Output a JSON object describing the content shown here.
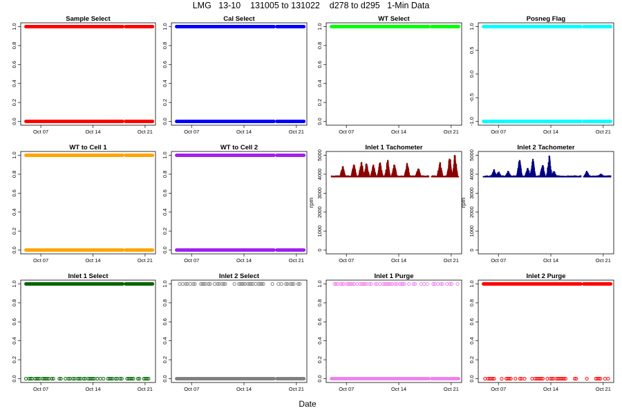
{
  "figure": {
    "title": "LMG   13-10    131005 to 131022    d278 to d295   1-Min Data",
    "xlabel": "Date"
  },
  "chart_data": [
    {
      "type": "scatter",
      "title": "Sample Select",
      "color": "#ff0000",
      "ylim": [
        0,
        1
      ],
      "yticks": [
        "0.0",
        "0.2",
        "0.4",
        "0.6",
        "0.8",
        "1.0"
      ],
      "xticks": [
        "Oct 07",
        "Oct 14",
        "Oct 21"
      ],
      "ylabel": "",
      "series": [
        {
          "values": [
            0,
            1
          ],
          "segments": [
            [
              "Oct 05",
              "Oct 18"
            ],
            [
              "Oct 18.4",
              "Oct 22"
            ]
          ]
        }
      ]
    },
    {
      "type": "scatter",
      "title": "Cal Select",
      "color": "#0000ff",
      "ylim": [
        0,
        1
      ],
      "yticks": [
        "0.0",
        "0.2",
        "0.4",
        "0.6",
        "0.8",
        "1.0"
      ],
      "xticks": [
        "Oct 07",
        "Oct 14",
        "Oct 21"
      ],
      "ylabel": "",
      "series": [
        {
          "values": [
            0,
            1
          ],
          "segments": [
            [
              "Oct 05",
              "Oct 18"
            ],
            [
              "Oct 18.4",
              "Oct 22"
            ]
          ]
        }
      ]
    },
    {
      "type": "scatter",
      "title": "WT Select",
      "color": "#00ff00",
      "ylim": [
        0,
        1
      ],
      "yticks": [
        "0.0",
        "0.2",
        "0.4",
        "0.6",
        "0.8",
        "1.0"
      ],
      "xticks": [
        "Oct 07",
        "Oct 14",
        "Oct 21"
      ],
      "ylabel": "",
      "series": [
        {
          "values": [
            1
          ],
          "segments": [
            [
              "Oct 05",
              "Oct 18"
            ],
            [
              "Oct 18.4",
              "Oct 22"
            ]
          ]
        }
      ]
    },
    {
      "type": "scatter",
      "title": "Posneg Flag",
      "color": "#00ffff",
      "ylim": [
        -1,
        1
      ],
      "yticks": [
        "-1.0",
        "-0.5",
        "0.0",
        "0.5",
        "1.0"
      ],
      "xticks": [
        "Oct 07",
        "Oct 14",
        "Oct 21"
      ],
      "ylabel": "",
      "series": [
        {
          "values": [
            -1,
            1
          ],
          "segments": [
            [
              "Oct 05",
              "Oct 18"
            ],
            [
              "Oct 18.4",
              "Oct 22"
            ]
          ]
        }
      ]
    },
    {
      "type": "scatter",
      "title": "WT to Cell 1",
      "color": "#ffa500",
      "ylim": [
        0,
        1
      ],
      "yticks": [
        "0.0",
        "0.2",
        "0.4",
        "0.6",
        "0.8",
        "1.0"
      ],
      "xticks": [
        "Oct 07",
        "Oct 14",
        "Oct 21"
      ],
      "ylabel": "",
      "series": [
        {
          "values": [
            0,
            1
          ],
          "segments": [
            [
              "Oct 05",
              "Oct 18"
            ],
            [
              "Oct 18.4",
              "Oct 22"
            ]
          ]
        }
      ]
    },
    {
      "type": "scatter",
      "title": "WT to Cell 2",
      "color": "#a020f0",
      "ylim": [
        0,
        1
      ],
      "yticks": [
        "0.0",
        "0.2",
        "0.4",
        "0.6",
        "0.8",
        "1.0"
      ],
      "xticks": [
        "Oct 07",
        "Oct 14",
        "Oct 21"
      ],
      "ylabel": "",
      "series": [
        {
          "values": [
            0,
            1
          ],
          "segments": [
            [
              "Oct 05",
              "Oct 18"
            ],
            [
              "Oct 18.4",
              "Oct 22"
            ]
          ]
        }
      ]
    },
    {
      "type": "scatter",
      "title": "Inlet 1 Tachometer",
      "color": "#8b0000",
      "ylim": [
        0,
        5000
      ],
      "yticks": [
        "0",
        "1000",
        "2000",
        "3000",
        "4000",
        "5000"
      ],
      "xticks": [
        "Oct 07",
        "Oct 14",
        "Oct 21"
      ],
      "ylabel": "rpm",
      "base": 3900,
      "segments": [
        [
          "Oct 05",
          "Oct 18"
        ],
        [
          "Oct 18.4",
          "Oct 22"
        ]
      ],
      "peaks": [
        [
          6.5,
          4500
        ],
        [
          8.0,
          4600
        ],
        [
          9.0,
          4800
        ],
        [
          9.7,
          4700
        ],
        [
          10.6,
          4550
        ],
        [
          11.5,
          4800
        ],
        [
          12.5,
          4850
        ],
        [
          13.4,
          4600
        ],
        [
          15.1,
          4700
        ],
        [
          16.6,
          4400
        ],
        [
          19.5,
          4750
        ],
        [
          20.8,
          5100
        ],
        [
          21.5,
          5200
        ]
      ]
    },
    {
      "type": "scatter",
      "title": "Inlet 2 Tachometer",
      "color": "#000080",
      "ylim": [
        0,
        5000
      ],
      "yticks": [
        "0",
        "1000",
        "2000",
        "3000",
        "4000",
        "5000"
      ],
      "xticks": [
        "Oct 07",
        "Oct 14",
        "Oct 21"
      ],
      "ylabel": "rpm",
      "base": 3900,
      "segments": [
        [
          "Oct 05",
          "Oct 18"
        ],
        [
          "Oct 18.4",
          "Oct 22"
        ]
      ],
      "peaks": [
        [
          6.4,
          4300
        ],
        [
          7.0,
          4200
        ],
        [
          8.3,
          4200
        ],
        [
          9.8,
          4900
        ],
        [
          10.9,
          4450
        ],
        [
          11.6,
          4900
        ],
        [
          12.9,
          4600
        ],
        [
          13.8,
          5050
        ],
        [
          14.4,
          4200
        ],
        [
          18.8,
          4200
        ],
        [
          20.7,
          4050
        ]
      ]
    },
    {
      "type": "scatter",
      "title": "Inlet 1 Select",
      "color": "#006400",
      "ylim": [
        0,
        1
      ],
      "yticks": [
        "0.0",
        "0.2",
        "0.4",
        "0.6",
        "0.8",
        "1.0"
      ],
      "xticks": [
        "Oct 07",
        "Oct 14",
        "Oct 21"
      ],
      "ylabel": "",
      "series": [
        {
          "values": [
            0,
            1
          ],
          "segments": [
            [
              "Oct 05",
              "Oct 18"
            ],
            [
              "Oct 18.4",
              "Oct 22"
            ]
          ]
        }
      ]
    },
    {
      "type": "scatter",
      "title": "Inlet 2 Select",
      "color": "#808080",
      "ylim": [
        0,
        1
      ],
      "yticks": [
        "0.0",
        "0.2",
        "0.4",
        "0.6",
        "0.8",
        "1.0"
      ],
      "xticks": [
        "Oct 07",
        "Oct 14",
        "Oct 21"
      ],
      "ylabel": "",
      "series": [
        {
          "values": [
            0,
            1
          ],
          "segments": [
            [
              "Oct 05",
              "Oct 18"
            ],
            [
              "Oct 18.4",
              "Oct 22"
            ]
          ]
        }
      ]
    },
    {
      "type": "scatter",
      "title": "Inlet 1 Purge",
      "color": "#ee82ee",
      "ylim": [
        0,
        1
      ],
      "yticks": [
        "0.0",
        "0.2",
        "0.4",
        "0.6",
        "0.8",
        "1.0"
      ],
      "xticks": [
        "Oct 07",
        "Oct 14",
        "Oct 21"
      ],
      "ylabel": "",
      "series": [
        {
          "values": [
            0,
            1
          ],
          "segments": [
            [
              "Oct 05",
              "Oct 18"
            ],
            [
              "Oct 18.4",
              "Oct 22"
            ]
          ]
        }
      ]
    },
    {
      "type": "scatter",
      "title": "Inlet 2 Purge",
      "color": "#ff0000",
      "ylim": [
        0,
        1
      ],
      "yticks": [
        "0.0",
        "0.2",
        "0.4",
        "0.6",
        "0.8",
        "1.0"
      ],
      "xticks": [
        "Oct 07",
        "Oct 14",
        "Oct 21"
      ],
      "ylabel": "",
      "series": [
        {
          "values": [
            0,
            1
          ],
          "segments": [
            [
              "Oct 05",
              "Oct 18"
            ],
            [
              "Oct 18.4",
              "Oct 22"
            ]
          ]
        }
      ]
    }
  ]
}
